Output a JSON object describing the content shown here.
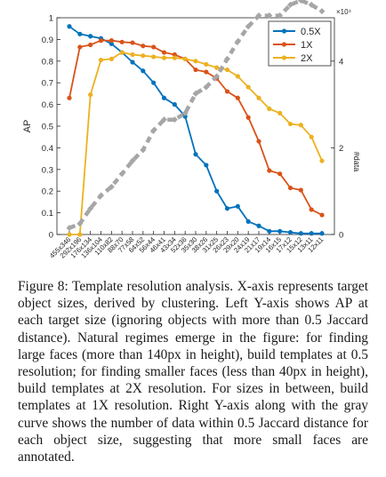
{
  "chart_data": {
    "type": "line",
    "categories": [
      "455x346",
      "292x196",
      "176x134",
      "136x104",
      "110x82",
      "88x70",
      "77x58",
      "64x52",
      "56x44",
      "46x41",
      "43x34",
      "52x36",
      "35x30",
      "38x26",
      "31x25",
      "26x23",
      "29x20",
      "24x19",
      "21x17",
      "19x14",
      "16x15",
      "17x12",
      "15x12",
      "13x11",
      "12x11"
    ],
    "series": [
      {
        "name": "0.5X",
        "color": "#0072bd",
        "values": [
          0.96,
          0.925,
          0.915,
          0.905,
          0.88,
          0.84,
          0.795,
          0.755,
          0.7,
          0.63,
          0.6,
          0.545,
          0.37,
          0.32,
          0.2,
          0.12,
          0.13,
          0.06,
          0.04,
          0.015,
          0.015,
          0.01,
          0.005,
          0.005,
          0.005
        ]
      },
      {
        "name": "1X",
        "color": "#d95319",
        "values": [
          0.63,
          0.865,
          0.875,
          0.895,
          0.895,
          0.888,
          0.885,
          0.87,
          0.865,
          0.84,
          0.83,
          0.81,
          0.76,
          0.75,
          0.72,
          0.66,
          0.63,
          0.54,
          0.43,
          0.295,
          0.28,
          0.215,
          0.205,
          0.115,
          0.09
        ]
      },
      {
        "name": "2X",
        "color": "#edb120",
        "values": [
          0.0,
          0.0,
          0.645,
          0.805,
          0.81,
          0.84,
          0.83,
          0.825,
          0.82,
          0.815,
          0.815,
          0.81,
          0.8,
          0.785,
          0.77,
          0.76,
          0.73,
          0.68,
          0.63,
          0.58,
          0.56,
          0.51,
          0.505,
          0.45,
          0.34
        ]
      },
      {
        "name": "#data",
        "color": "#a6a6a6",
        "axis": "right",
        "dashed": true,
        "values": [
          0.15,
          0.25,
          0.6,
          0.9,
          1.1,
          1.4,
          1.7,
          1.95,
          2.4,
          2.65,
          2.65,
          2.8,
          3.25,
          3.4,
          3.65,
          4.05,
          4.45,
          4.8,
          5.05,
          5.05,
          5.05,
          5.3,
          5.4,
          5.3,
          5.15
        ]
      }
    ],
    "ylabel": "AP",
    "ylabel_right": "#data",
    "ylim": [
      0,
      1
    ],
    "ylim_right": [
      0,
      50000
    ],
    "yticks": [
      "0",
      "0.1",
      "0.2",
      "0.3",
      "0.4",
      "0.5",
      "0.6",
      "0.7",
      "0.8",
      "0.9",
      "1"
    ],
    "yticks_right": [
      "0",
      "2",
      "4"
    ],
    "right_axis_exponent": "×10⁴",
    "legend_position": "top-right",
    "grid": false
  },
  "caption": {
    "text": "Figure 8: Template resolution analysis. X-axis represents target object sizes, derived by clustering. Left Y-axis shows AP at each target size (ignoring objects with more than 0.5 Jaccard distance). Natural regimes emerge in the figure: for finding large faces (more than 140px in height), build templates at 0.5 resolution; for finding smaller faces (less than 40px in height), build templates at 2X resolution. For sizes in between, build templates at 1X resolution. Right Y-axis along with the gray curve shows the number of data within 0.5 Jaccard distance for each object size, suggesting that more small faces are annotated."
  }
}
